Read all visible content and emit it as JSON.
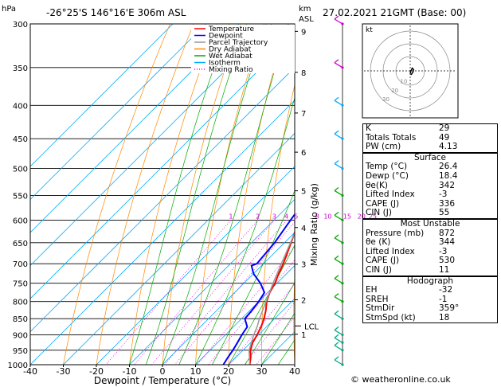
{
  "header": {
    "location": "-26°25'S  146°16'E  306m  ASL",
    "datetime": "27.02.2021  21GMT  (Base: 00)",
    "hpa_unit": "hPa",
    "km_unit": "km",
    "asl_unit": "ASL"
  },
  "chart_data": {
    "type": "line",
    "title": "",
    "xlabel": "Dewpoint / Temperature (°C)",
    "ylabel": "hPa",
    "right_axis_label": "Mixing Ratio (g/kg)",
    "x_ticks": [
      -40,
      -30,
      -20,
      -10,
      0,
      10,
      20,
      30,
      40
    ],
    "xlim": [
      -40,
      40
    ],
    "y_scale": "log",
    "pressure_ticks": [
      300,
      350,
      400,
      450,
      500,
      550,
      600,
      650,
      700,
      750,
      800,
      850,
      900,
      950,
      1000
    ],
    "ylim": [
      1000,
      300
    ],
    "km_ticks": [
      {
        "label": "9",
        "p": 308
      },
      {
        "label": "8",
        "p": 356
      },
      {
        "label": "7",
        "p": 411
      },
      {
        "label": "6",
        "p": 472
      },
      {
        "label": "5",
        "p": 541
      },
      {
        "label": "4",
        "p": 616
      },
      {
        "label": "3",
        "p": 701
      },
      {
        "label": "2",
        "p": 795
      },
      {
        "label": "1",
        "p": 898
      }
    ],
    "lcl": {
      "label": "LCL",
      "p": 872
    },
    "mixing_ratio_labels": [
      "1",
      "2",
      "3",
      "4",
      "5",
      "8",
      "10",
      "15",
      "20",
      "25"
    ],
    "mixing_ratio_values": [
      1,
      2,
      3,
      4,
      5,
      8,
      10,
      15,
      20,
      25
    ],
    "legend": [
      "Temperature",
      "Dewpoint",
      "Parcel Trajectory",
      "Dry Adiabat",
      "Wet Adiabat",
      "Isotherm",
      "Mixing Ratio"
    ],
    "legend_colors": [
      "#ff0000",
      "#0000ff",
      "#999999",
      "#ff8800",
      "#00aa00",
      "#00aaff",
      "#ff00ff"
    ],
    "series": [
      {
        "name": "Temperature",
        "color": "#ff0000",
        "p": [
          1000,
          975,
          950,
          925,
          900,
          875,
          850,
          825,
          800,
          775,
          750,
          725,
          700,
          650,
          600,
          550,
          500,
          450,
          400,
          375,
          350,
          325,
          300
        ],
        "t": [
          26.4,
          24.5,
          22.2,
          20.6,
          19.6,
          18.4,
          16.8,
          14.8,
          12.4,
          10.6,
          9.4,
          7.6,
          6.0,
          2.0,
          -2.4,
          -7.2,
          -12.2,
          -17.8,
          -22.6,
          -25.4,
          -29.6,
          -34.6,
          -40.0
        ]
      },
      {
        "name": "Dewpoint",
        "color": "#0000ff",
        "p": [
          1000,
          975,
          950,
          925,
          900,
          875,
          850,
          825,
          800,
          775,
          750,
          725,
          705,
          700,
          650,
          600,
          550,
          500,
          480,
          450,
          430,
          420,
          410,
          400,
          380,
          370,
          350,
          340,
          325,
          310,
          300
        ],
        "t": [
          18.4,
          17.6,
          16.9,
          16.0,
          15.0,
          14.2,
          11.0,
          10.6,
          10.0,
          9.0,
          5.0,
          0.0,
          -3.0,
          -2.0,
          -3.0,
          -5.0,
          -7.0,
          -11.0,
          -14.0,
          -23.0,
          -23.0,
          -26.0,
          -25.0,
          -23.0,
          -30.0,
          -35.0,
          -33.0,
          -36.0,
          -38.0,
          -44.0,
          -46.0
        ]
      },
      {
        "name": "Parcel Trajectory",
        "color": "#999999",
        "p": [
          1000,
          950,
          900,
          872,
          850,
          800,
          750,
          700,
          650,
          600,
          550,
          500,
          450,
          400,
          350,
          300
        ],
        "t": [
          26.4,
          21.8,
          18.6,
          17.0,
          15.4,
          12.2,
          8.8,
          5.4,
          1.8,
          -2.0,
          -5.8,
          -10.0,
          -15.2,
          -21.0,
          -28.4,
          -37.8
        ]
      }
    ],
    "wind_barbs": {
      "p": [
        1000,
        950,
        925,
        900,
        850,
        800,
        750,
        700,
        650,
        600,
        550,
        500,
        450,
        400,
        350,
        300
      ]
    },
    "hodograph": {
      "label": "kt",
      "ring_labels": [
        "10",
        "20",
        "30"
      ],
      "path_u": [
        0,
        0.5,
        1.5,
        2.5,
        2,
        0.5
      ],
      "path_v": [
        -2,
        0,
        2,
        1,
        -1,
        -3
      ]
    }
  },
  "indices": {
    "rows": [
      {
        "label": "K",
        "value": "29"
      },
      {
        "label": "Totals Totals",
        "value": "49"
      },
      {
        "label": "PW (cm)",
        "value": "4.13"
      }
    ]
  },
  "surface": {
    "title": "Surface",
    "rows": [
      {
        "label": "Temp (°C)",
        "value": "26.4"
      },
      {
        "label": "Dewp (°C)",
        "value": "18.4"
      },
      {
        "label": "θe(K)",
        "value": "342"
      },
      {
        "label": "Lifted Index",
        "value": "-3"
      },
      {
        "label": "CAPE (J)",
        "value": "336"
      },
      {
        "label": "CIN (J)",
        "value": "55"
      }
    ]
  },
  "most_unstable": {
    "title": "Most Unstable",
    "rows": [
      {
        "label": "Pressure (mb)",
        "value": "872"
      },
      {
        "label": "θe (K)",
        "value": "344"
      },
      {
        "label": "Lifted Index",
        "value": "-3"
      },
      {
        "label": "CAPE (J)",
        "value": "530"
      },
      {
        "label": "CIN (J)",
        "value": "11"
      }
    ]
  },
  "hodograph_table": {
    "title": "Hodograph",
    "rows": [
      {
        "label": "EH",
        "value": "-32"
      },
      {
        "label": "SREH",
        "value": "-1"
      },
      {
        "label": "StmDir",
        "value": "359°"
      },
      {
        "label": "StmSpd (kt)",
        "value": "18"
      }
    ]
  },
  "copyright": "© weatheronline.co.uk"
}
